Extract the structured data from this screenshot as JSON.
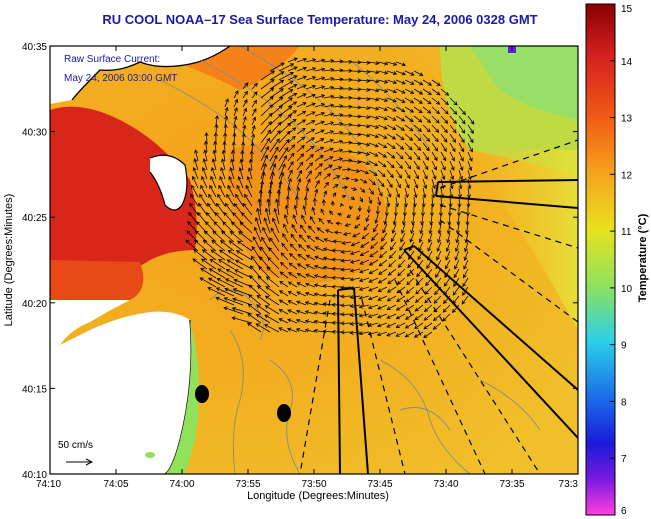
{
  "title": "RU COOL  NOAA–17  Sea Surface Temperature:  May 24, 2006 0328 GMT",
  "annotation": {
    "line1": "Raw Surface Current:",
    "line2": "May 24, 2006 03:00 GMT"
  },
  "scale_label": "50 cm/s",
  "axes": {
    "xlabel": "Longitude (Degrees:Minutes)",
    "ylabel": "Latitude (Degrees:Minutes)",
    "x_ticks": [
      "74:10",
      "74:05",
      "74:00",
      "73:55",
      "73:50",
      "73:45",
      "73:40",
      "73:35",
      "73:3"
    ],
    "y_ticks": [
      "40:35",
      "40:30",
      "40:25",
      "40:20",
      "40:15",
      "40:10"
    ]
  },
  "colorbar": {
    "label": "Temperature (°C)",
    "ticks": [
      "15",
      "14",
      "13",
      "12",
      "11",
      "10",
      "9",
      "8",
      "7",
      "6"
    ],
    "min": 6,
    "max": 15
  },
  "map_layers": [
    "sea-surface-temperature",
    "coastline",
    "bathymetry-contours",
    "surface-current-vectors",
    "shipping-lanes"
  ]
}
